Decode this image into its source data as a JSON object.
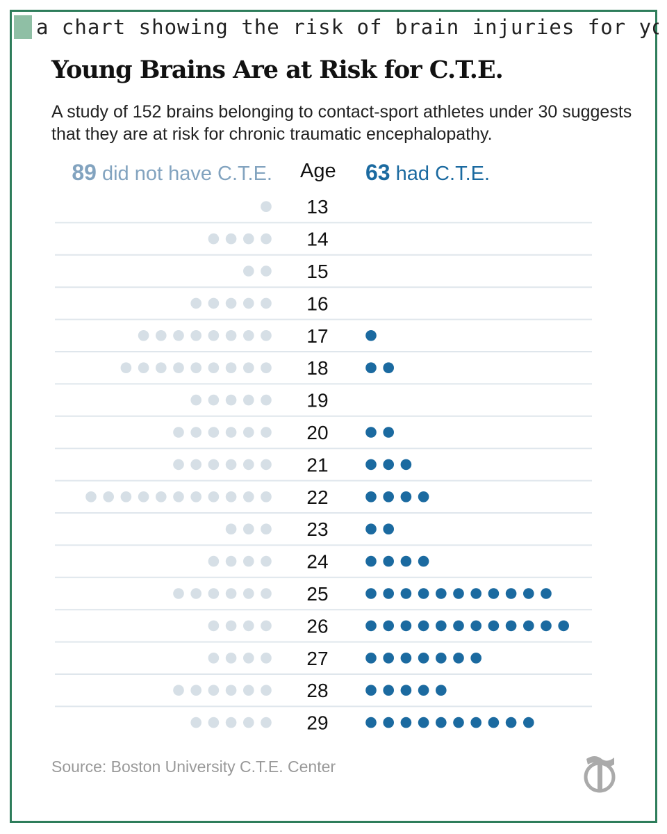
{
  "caption": "a chart showing the risk of brain injuries for young",
  "title": "Young Brains Are at Risk for C.T.E.",
  "subtitle": "A study of 152 brains belonging to contact-sport athletes under 30 suggests that they are at risk for chronic traumatic encephalopathy.",
  "headers": {
    "left_count": "89",
    "left_label": " did not have C.T.E.",
    "age_label": "Age",
    "right_count": "63",
    "right_label": " had C.T.E."
  },
  "source": "Source: Boston University C.T.E. Center",
  "colors": {
    "no_cte": "#d6dfe6",
    "had_cte": "#1b6aa0",
    "row_line": "#dfe6ec",
    "frame": "#2e7d5b"
  },
  "logo_icon": "nyt-t-logo-icon",
  "chart_data": {
    "type": "dot-plot",
    "title": "Young Brains Are at Risk for C.T.E.",
    "xlabel": "",
    "ylabel": "Age",
    "categories": [
      "13",
      "14",
      "15",
      "16",
      "17",
      "18",
      "19",
      "20",
      "21",
      "22",
      "23",
      "24",
      "25",
      "26",
      "27",
      "28",
      "29"
    ],
    "series": [
      {
        "name": "did not have C.T.E.",
        "values": [
          1,
          4,
          2,
          5,
          8,
          9,
          5,
          6,
          6,
          11,
          3,
          4,
          6,
          4,
          4,
          6,
          5
        ]
      },
      {
        "name": "had C.T.E.",
        "values": [
          0,
          0,
          0,
          0,
          1,
          2,
          0,
          2,
          3,
          4,
          2,
          4,
          11,
          12,
          7,
          5,
          10
        ]
      }
    ],
    "grid": true
  }
}
